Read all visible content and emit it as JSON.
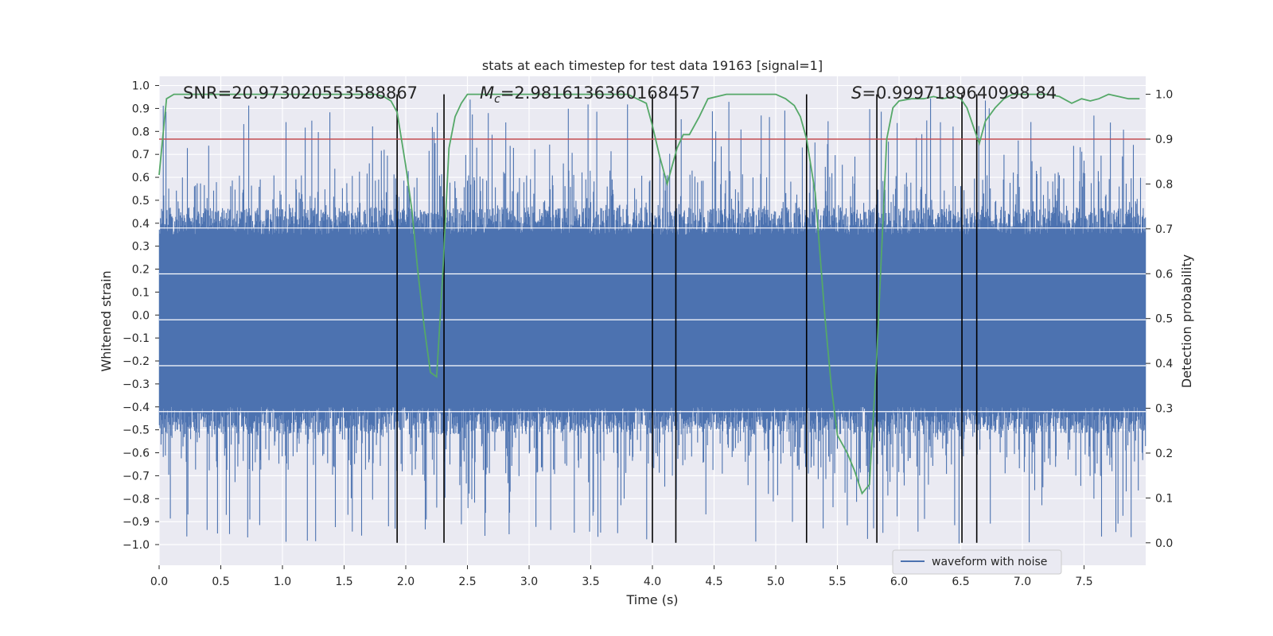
{
  "chart_data": {
    "type": "line",
    "title": "stats at each timestep for test data 19163 [signal=1]",
    "xlabel": "Time (s)",
    "ylabel": "Whitened strain",
    "y2label": "Detection probability",
    "xlim": [
      0.0,
      8.0
    ],
    "ylim": [
      -1.09,
      1.04
    ],
    "y2lim": [
      -0.05,
      1.04
    ],
    "xticks": [
      0.0,
      0.5,
      1.0,
      1.5,
      2.0,
      2.5,
      3.0,
      3.5,
      4.0,
      4.5,
      5.0,
      5.5,
      6.0,
      6.5,
      7.0,
      7.5
    ],
    "xtick_labels": [
      "0.0",
      "0.5",
      "1.0",
      "1.5",
      "2.0",
      "2.5",
      "3.0",
      "3.5",
      "4.0",
      "4.5",
      "5.0",
      "5.5",
      "6.0",
      "6.5",
      "7.0",
      "7.5"
    ],
    "yticks": [
      1.0,
      0.9,
      0.8,
      0.7,
      0.6,
      0.5,
      0.4,
      0.3,
      0.2,
      0.1,
      0.0,
      -0.1,
      -0.2,
      -0.3,
      -0.4,
      -0.5,
      -0.6,
      -0.7,
      -0.8,
      -0.9,
      -1.0
    ],
    "ytick_labels": [
      "1.0",
      "0.9",
      "0.8",
      "0.7",
      "0.6",
      "0.5",
      "0.4",
      "0.3",
      "0.2",
      "0.1",
      "0.0",
      "−0.1",
      "−0.2",
      "−0.3",
      "−0.4",
      "−0.5",
      "−0.6",
      "−0.7",
      "−0.8",
      "−0.9",
      "−1.0"
    ],
    "y2ticks": [
      1.0,
      0.9,
      0.8,
      0.7,
      0.6,
      0.5,
      0.4,
      0.3,
      0.2,
      0.1,
      0.0
    ],
    "y2tick_labels": [
      "1.0",
      "0.9",
      "0.8",
      "0.7",
      "0.6",
      "0.5",
      "0.4",
      "0.3",
      "0.2",
      "0.1",
      "0.0"
    ],
    "grid": true,
    "annotations": {
      "snr": "SNR=20.973020553588867",
      "mc_symbol": "M",
      "mc_sub": "c",
      "mc_value": "=2.9816136360168457",
      "s_symbol": "S",
      "s_value": "=0.9997189640998 84"
    },
    "threshold": {
      "value": 0.9,
      "axis": "y2",
      "color": "#c44e52"
    },
    "event_markers": [
      1.93,
      2.31,
      4.0,
      4.19,
      5.25,
      5.82,
      6.51,
      6.63
    ],
    "series": [
      {
        "name": "waveform with noise",
        "axis": "y1",
        "color": "#4c72b0",
        "style": "dense-noise",
        "core_band": [
          -0.4,
          0.35
        ],
        "spike_max": 0.95,
        "spike_min": -1.0
      },
      {
        "name": "detection probability",
        "axis": "y2",
        "color": "#55a868",
        "x": [
          0.0,
          0.06,
          0.12,
          0.2,
          0.5,
          1.0,
          1.5,
          1.75,
          1.82,
          1.88,
          1.93,
          2.0,
          2.05,
          2.1,
          2.15,
          2.2,
          2.25,
          2.3,
          2.35,
          2.4,
          2.45,
          2.5,
          2.6,
          3.0,
          3.5,
          3.8,
          3.95,
          4.0,
          4.06,
          4.12,
          4.2,
          4.25,
          4.3,
          4.38,
          4.45,
          4.6,
          4.8,
          5.0,
          5.08,
          5.15,
          5.2,
          5.25,
          5.32,
          5.4,
          5.45,
          5.5,
          5.58,
          5.64,
          5.7,
          5.76,
          5.82,
          5.9,
          5.95,
          6.0,
          6.1,
          6.2,
          6.28,
          6.35,
          6.45,
          6.5,
          6.55,
          6.6,
          6.65,
          6.7,
          6.78,
          6.85,
          6.92,
          7.0,
          7.1,
          7.2,
          7.3,
          7.4,
          7.48,
          7.55,
          7.62,
          7.7,
          7.78,
          7.86,
          7.95
        ],
        "values": [
          0.82,
          0.99,
          1.0,
          1.0,
          1.0,
          1.0,
          1.0,
          1.0,
          0.995,
          0.985,
          0.96,
          0.84,
          0.74,
          0.6,
          0.48,
          0.38,
          0.37,
          0.6,
          0.88,
          0.95,
          0.98,
          1.0,
          1.0,
          1.0,
          1.0,
          1.0,
          0.98,
          0.93,
          0.86,
          0.8,
          0.88,
          0.91,
          0.91,
          0.95,
          0.99,
          1.0,
          1.0,
          1.0,
          0.99,
          0.975,
          0.95,
          0.9,
          0.78,
          0.5,
          0.35,
          0.24,
          0.2,
          0.16,
          0.11,
          0.13,
          0.42,
          0.9,
          0.97,
          0.985,
          0.99,
          0.99,
          0.995,
          0.99,
          0.995,
          0.99,
          0.97,
          0.93,
          0.89,
          0.94,
          0.97,
          0.99,
          1.0,
          1.0,
          1.0,
          1.0,
          0.995,
          0.98,
          0.99,
          0.985,
          0.99,
          1.0,
          0.995,
          0.99,
          0.99
        ]
      }
    ],
    "legend": {
      "placement": "lower-right",
      "entries": [
        "waveform with noise"
      ]
    }
  }
}
